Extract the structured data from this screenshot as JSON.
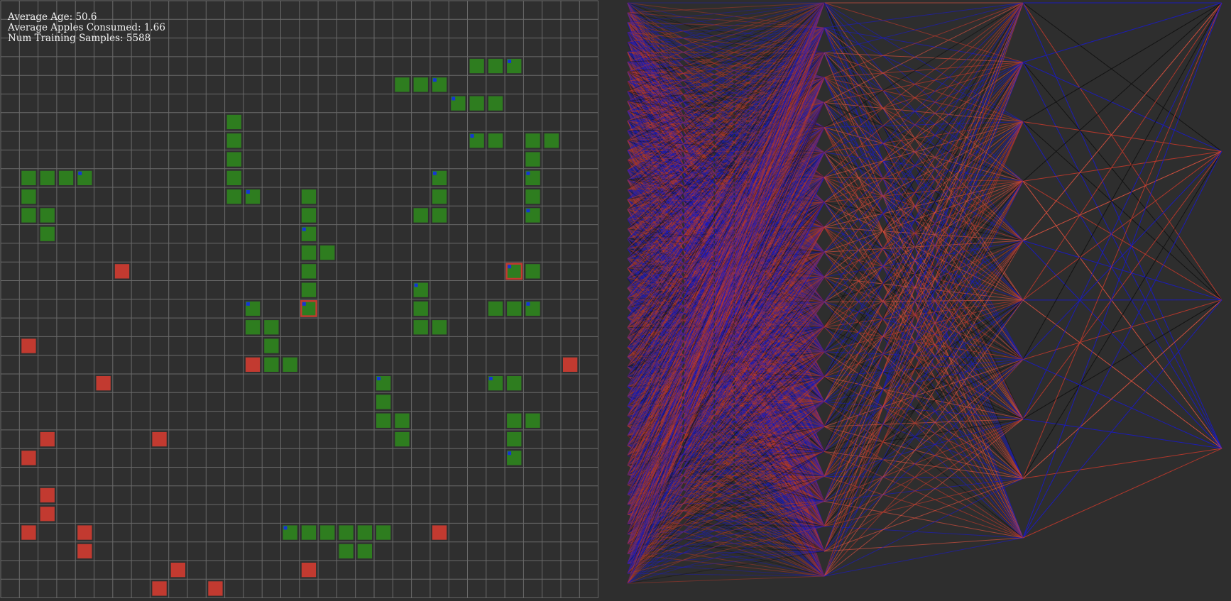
{
  "stats": {
    "average_age": "Average Age: 50.6",
    "average_apples": "Average Apples Consumed: 1.66",
    "training_samples": "Num Training Samples: 5588"
  },
  "colors": {
    "background": "#2e2e2e",
    "grid_line": "#6a6a6a",
    "snake_body": "#2e7d1f",
    "snake_head_marker": "#1535d6",
    "apple": "#c23a30",
    "selected_outline": "#c23a30",
    "weight_positive": "#1a1ac8",
    "weight_negative": "#c0392b",
    "weight_neutral": "#111111"
  },
  "grid": {
    "cols": 32,
    "rows": 32
  },
  "snakes": [
    {
      "cells": [
        [
          25,
          3
        ],
        [
          26,
          3
        ],
        [
          27,
          3
        ]
      ],
      "head": [
        27,
        3
      ]
    },
    {
      "cells": [
        [
          21,
          4
        ],
        [
          22,
          4
        ],
        [
          23,
          4
        ]
      ],
      "head": [
        23,
        4
      ]
    },
    {
      "cells": [
        [
          24,
          5
        ],
        [
          25,
          5
        ],
        [
          26,
          5
        ]
      ],
      "head": [
        24,
        5
      ]
    },
    {
      "cells": [
        [
          25,
          7
        ],
        [
          26,
          7
        ]
      ],
      "head": [
        25,
        7
      ]
    },
    {
      "cells": [
        [
          28,
          7
        ],
        [
          29,
          7
        ],
        [
          28,
          8
        ],
        [
          28,
          9
        ],
        [
          28,
          10
        ],
        [
          28,
          11
        ]
      ],
      "head": [
        28,
        11
      ]
    },
    {
      "cells": [
        [
          1,
          9
        ],
        [
          2,
          9
        ],
        [
          3,
          9
        ],
        [
          4,
          9
        ],
        [
          1,
          10
        ],
        [
          1,
          11
        ],
        [
          2,
          11
        ],
        [
          2,
          12
        ]
      ],
      "head": [
        4,
        9
      ]
    },
    {
      "cells": [
        [
          12,
          6
        ],
        [
          12,
          7
        ],
        [
          12,
          8
        ],
        [
          12,
          9
        ],
        [
          12,
          10
        ],
        [
          13,
          10
        ]
      ],
      "head": [
        13,
        10
      ]
    },
    {
      "cells": [
        [
          23,
          9
        ],
        [
          23,
          10
        ],
        [
          23,
          11
        ],
        [
          22,
          11
        ]
      ],
      "head": [
        23,
        9
      ]
    },
    {
      "cells": [
        [
          28,
          9
        ]
      ],
      "head": [
        28,
        9
      ]
    },
    {
      "cells": [
        [
          16,
          10
        ],
        [
          16,
          11
        ],
        [
          16,
          12
        ],
        [
          16,
          13
        ],
        [
          17,
          13
        ],
        [
          16,
          14
        ],
        [
          16,
          15
        ],
        [
          16,
          16
        ]
      ],
      "head": [
        16,
        12
      ]
    },
    {
      "cells": [
        [
          16,
          16
        ]
      ],
      "head": [
        16,
        16
      ],
      "selected": true
    },
    {
      "cells": [
        [
          27,
          14
        ],
        [
          28,
          14
        ]
      ],
      "head": [
        27,
        14
      ],
      "selected": true
    },
    {
      "cells": [
        [
          22,
          15
        ],
        [
          22,
          16
        ],
        [
          22,
          17
        ],
        [
          23,
          17
        ]
      ],
      "head": [
        22,
        15
      ]
    },
    {
      "cells": [
        [
          26,
          16
        ],
        [
          27,
          16
        ],
        [
          28,
          16
        ]
      ],
      "head": [
        28,
        16
      ]
    },
    {
      "cells": [
        [
          13,
          16
        ],
        [
          13,
          17
        ],
        [
          14,
          17
        ],
        [
          14,
          18
        ],
        [
          14,
          19
        ],
        [
          15,
          19
        ]
      ],
      "head": [
        13,
        16
      ]
    },
    {
      "cells": [
        [
          20,
          20
        ],
        [
          20,
          21
        ],
        [
          20,
          22
        ],
        [
          21,
          22
        ],
        [
          21,
          23
        ]
      ],
      "head": [
        20,
        20
      ]
    },
    {
      "cells": [
        [
          26,
          20
        ],
        [
          27,
          20
        ]
      ],
      "head": [
        26,
        20
      ]
    },
    {
      "cells": [
        [
          27,
          22
        ],
        [
          28,
          22
        ],
        [
          27,
          23
        ],
        [
          27,
          24
        ]
      ],
      "head": [
        27,
        24
      ]
    },
    {
      "cells": [
        [
          15,
          28
        ],
        [
          16,
          28
        ],
        [
          17,
          28
        ],
        [
          18,
          28
        ],
        [
          19,
          28
        ],
        [
          20,
          28
        ],
        [
          18,
          29
        ],
        [
          19,
          29
        ]
      ],
      "head": [
        15,
        28
      ]
    }
  ],
  "apples": [
    [
      6,
      14
    ],
    [
      1,
      18
    ],
    [
      13,
      19
    ],
    [
      30,
      19
    ],
    [
      5,
      20
    ],
    [
      2,
      23
    ],
    [
      8,
      23
    ],
    [
      1,
      24
    ],
    [
      2,
      26
    ],
    [
      2,
      27
    ],
    [
      1,
      28
    ],
    [
      4,
      28
    ],
    [
      23,
      28
    ],
    [
      4,
      29
    ],
    [
      9,
      30
    ],
    [
      16,
      30
    ],
    [
      8,
      31
    ],
    [
      11,
      31
    ]
  ],
  "network": {
    "layer_sizes": [
      60,
      24,
      10,
      4
    ]
  }
}
